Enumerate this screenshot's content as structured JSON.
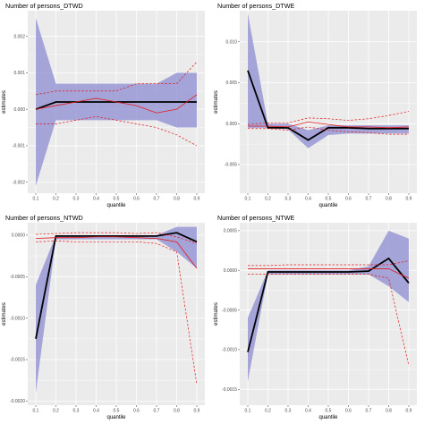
{
  "chart_data": [
    {
      "type": "line",
      "title": "Number of persons_DTWD",
      "xlabel": "quantile",
      "ylabel": "estimates",
      "x": [
        0.1,
        0.2,
        0.3,
        0.4,
        0.5,
        0.6,
        0.7,
        0.8,
        0.9
      ],
      "ylim": [
        -0.0023,
        0.0027
      ],
      "yticks": [
        -0.002,
        -0.001,
        0.0,
        0.001,
        0.002
      ],
      "ytick_labels": [
        "-0.002",
        "-0.001",
        "0.000",
        "0.001",
        "0.002"
      ],
      "band": {
        "lower": [
          -0.0021,
          -0.0003,
          -0.0003,
          -0.0003,
          -0.0003,
          -0.0003,
          -0.0003,
          -0.0005,
          -0.0005
        ],
        "upper": [
          0.0025,
          0.0007,
          0.0007,
          0.0007,
          0.0007,
          0.0007,
          0.0007,
          0.001,
          0.001
        ]
      },
      "series": [
        {
          "role": "estimate",
          "values": [
            0.0,
            0.0002,
            0.0002,
            0.0002,
            0.0002,
            0.0002,
            0.0002,
            0.0002,
            0.0002
          ]
        },
        {
          "role": "comparison",
          "values": [
            0.0,
            0.0001,
            0.0002,
            0.0003,
            0.0002,
            0.0001,
            -0.0001,
            0.0,
            0.0004
          ]
        },
        {
          "role": "comparison-upper",
          "values": [
            0.0004,
            0.0005,
            0.0005,
            0.0005,
            0.0005,
            0.0007,
            0.0007,
            0.0007,
            0.0013
          ]
        },
        {
          "role": "comparison-lower",
          "values": [
            -0.0004,
            -0.0004,
            -0.0003,
            -0.0002,
            -0.0003,
            -0.0004,
            -0.0005,
            -0.0007,
            -0.001
          ]
        }
      ]
    },
    {
      "type": "line",
      "title": "Number of persons_DTWE",
      "xlabel": "quantile",
      "ylabel": "estimates",
      "x": [
        0.1,
        0.2,
        0.3,
        0.4,
        0.5,
        0.6,
        0.7,
        0.8,
        0.9
      ],
      "ylim": [
        -0.0085,
        0.0138
      ],
      "yticks": [
        -0.005,
        0.0,
        0.005,
        0.01
      ],
      "ytick_labels": [
        "-0.005",
        "0.000",
        "0.005",
        "0.010"
      ],
      "band": {
        "lower": [
          -0.0005,
          -0.0005,
          -0.0007,
          -0.003,
          -0.0014,
          -0.0012,
          -0.0012,
          -0.0012,
          -0.0012
        ],
        "upper": [
          0.0135,
          0.0,
          0.0,
          -0.0008,
          -0.0002,
          -0.0002,
          -0.0002,
          -0.0002,
          -0.0002
        ]
      },
      "series": [
        {
          "role": "estimate",
          "values": [
            0.0065,
            -0.0005,
            -0.0005,
            -0.002,
            -0.0005,
            -0.0005,
            -0.0006,
            -0.0006,
            -0.0006
          ]
        },
        {
          "role": "comparison",
          "values": [
            -0.0003,
            -0.0003,
            -0.0004,
            0.0002,
            -0.0001,
            -0.0004,
            -0.0004,
            -0.0005,
            -0.0004
          ]
        },
        {
          "role": "comparison-upper",
          "values": [
            -0.0001,
            0.0001,
            0.0001,
            0.0007,
            0.0006,
            0.0004,
            0.0006,
            0.001,
            0.0015
          ]
        },
        {
          "role": "comparison-lower",
          "values": [
            -0.0006,
            -0.0006,
            -0.0008,
            -0.0004,
            -0.0008,
            -0.001,
            -0.0011,
            -0.0013,
            -0.0013
          ]
        }
      ]
    },
    {
      "type": "line",
      "title": "Number of persons_NTWD",
      "xlabel": "quantile",
      "ylabel": "estimates",
      "x": [
        0.1,
        0.2,
        0.3,
        0.4,
        0.5,
        0.6,
        0.7,
        0.8,
        0.9
      ],
      "ylim": [
        -0.00205,
        0.00015
      ],
      "yticks": [
        -0.002,
        -0.0015,
        -0.001,
        -0.0005,
        0.0
      ],
      "ytick_labels": [
        "-0.0020",
        "-0.0015",
        "-0.0010",
        "-0.0005",
        "0.0000"
      ],
      "band": {
        "lower": [
          -0.0019,
          -5e-05,
          -5e-05,
          -5e-05,
          -5e-05,
          -5e-05,
          -5e-05,
          -0.0002,
          -0.0004
        ],
        "upper": [
          -0.0006,
          0.0,
          0.0,
          0.0,
          0.0,
          0.0,
          0.0,
          0.0001,
          0.0001
        ]
      },
      "series": [
        {
          "role": "estimate",
          "values": [
            -0.00125,
            -1e-05,
            -1e-05,
            -1e-05,
            -1e-05,
            -1e-05,
            -1e-05,
            3e-05,
            -8e-05
          ]
        },
        {
          "role": "comparison",
          "values": [
            -4e-05,
            -3e-05,
            -3e-05,
            -2e-05,
            -2e-05,
            -3e-05,
            -4e-05,
            -8e-05,
            -0.0004
          ]
        },
        {
          "role": "comparison-upper",
          "values": [
            1e-05,
            2e-05,
            3e-05,
            3e-05,
            3e-05,
            2e-05,
            3e-05,
            -2e-05,
            -0.0001
          ]
        },
        {
          "role": "comparison-lower",
          "values": [
            -8e-05,
            -7e-05,
            -8e-05,
            -8e-05,
            -8e-05,
            -8e-05,
            -0.0001,
            -0.0002,
            -0.0018
          ]
        }
      ]
    },
    {
      "type": "line",
      "title": "Number of persons_NTWE",
      "xlabel": "quantile",
      "ylabel": "estimates",
      "x": [
        0.1,
        0.2,
        0.3,
        0.4,
        0.5,
        0.6,
        0.7,
        0.8,
        0.9
      ],
      "ylim": [
        -0.0017,
        0.0006
      ],
      "yticks": [
        -0.0015,
        -0.001,
        -0.0005,
        0.0,
        0.0005
      ],
      "ytick_labels": [
        "-0.0015",
        "-0.0010",
        "-0.0005",
        "0.0000",
        "0.0005"
      ],
      "band": {
        "lower": [
          -0.0014,
          -5e-05,
          -5e-05,
          -5e-05,
          -5e-05,
          -5e-05,
          -5e-05,
          -0.0002,
          -0.0004
        ],
        "upper": [
          -0.0006,
          0.0,
          0.0,
          0.0,
          0.0,
          0.0,
          5e-05,
          0.0005,
          0.0004
        ]
      },
      "series": [
        {
          "role": "estimate",
          "values": [
            -0.00103,
            -2e-05,
            -2e-05,
            -2e-05,
            -2e-05,
            -2e-05,
            -1e-05,
            0.00015,
            -0.00016
          ]
        },
        {
          "role": "comparison",
          "values": [
            2e-05,
            2e-05,
            2e-05,
            2e-05,
            2e-05,
            2e-05,
            2e-05,
            2e-05,
            -0.0001
          ]
        },
        {
          "role": "comparison-upper",
          "values": [
            6e-05,
            6e-05,
            7e-05,
            7e-05,
            7e-05,
            7e-05,
            7e-05,
            7e-05,
            0.00012
          ]
        },
        {
          "role": "comparison-lower",
          "values": [
            -5e-05,
            -5e-05,
            -5e-05,
            -5e-05,
            -5e-05,
            -5e-05,
            -5e-05,
            -0.0001,
            -0.0012
          ]
        }
      ]
    }
  ],
  "colors": {
    "panel_background": "#ebebeb",
    "grid": "#ffffff",
    "band": "#8c8cd2",
    "estimate": "#000000",
    "comparison": "#e41a1c"
  }
}
